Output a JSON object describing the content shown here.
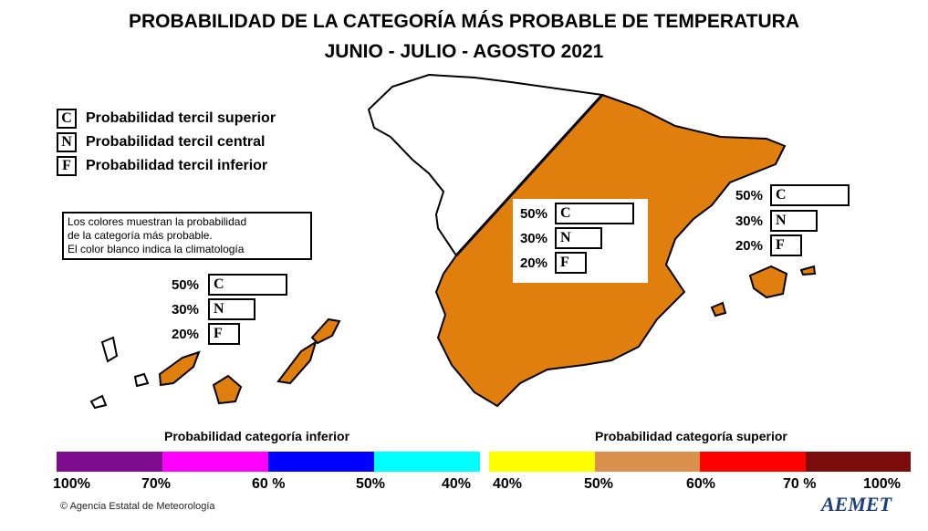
{
  "title": {
    "line1": "PROBABILIDAD DE LA CATEGORÍA MÁS PROBABLE DE TEMPERATURA",
    "line2": "JUNIO - JULIO - AGOSTO 2021"
  },
  "legend": [
    {
      "letter": "C",
      "text": "Probabilidad  tercil superior"
    },
    {
      "letter": "N",
      "text": "Probabilidad  tercil central"
    },
    {
      "letter": "F",
      "text": "Probabilidad  tercil inferior"
    }
  ],
  "note": [
    "Los colores muestran la probabilidad",
    "de la categoría más probable.",
    "El color blanco indica la climatología"
  ],
  "panels": [
    {
      "region": "peninsula",
      "rows": [
        {
          "value": "50%",
          "letter": "C",
          "fraction": 0.5
        },
        {
          "value": "30%",
          "letter": "N",
          "fraction": 0.3
        },
        {
          "value": "20%",
          "letter": "F",
          "fraction": 0.2
        }
      ]
    },
    {
      "region": "baleares",
      "rows": [
        {
          "value": "50%",
          "letter": "C",
          "fraction": 0.5
        },
        {
          "value": "30%",
          "letter": "N",
          "fraction": 0.3
        },
        {
          "value": "20%",
          "letter": "F",
          "fraction": 0.2
        }
      ]
    },
    {
      "region": "canarias",
      "rows": [
        {
          "value": "50%",
          "letter": "C",
          "fraction": 0.5
        },
        {
          "value": "30%",
          "letter": "N",
          "fraction": 0.3
        },
        {
          "value": "20%",
          "letter": "F",
          "fraction": 0.2
        }
      ]
    }
  ],
  "map_colors": {
    "above_40_50": "#e07f0e",
    "climatology": "#ffffff"
  },
  "scale_inferior": {
    "title": "Probabilidad categoría inferior",
    "colors": [
      "#7f0c8f",
      "#ff00ff",
      "#0000ff",
      "#00ffff"
    ],
    "ticks": [
      "100%",
      "70%",
      "60 %",
      "50%",
      "40%"
    ]
  },
  "scale_superior": {
    "title": "Probabilidad categoría superior",
    "colors": [
      "#ffff00",
      "#d9904a",
      "#ff0000",
      "#7b0c0c"
    ],
    "ticks": [
      "40%",
      "50%",
      "60%",
      "70 %",
      "100%"
    ]
  },
  "credit": "Agencia Estatal de Meteorología",
  "logo": "AEMET"
}
